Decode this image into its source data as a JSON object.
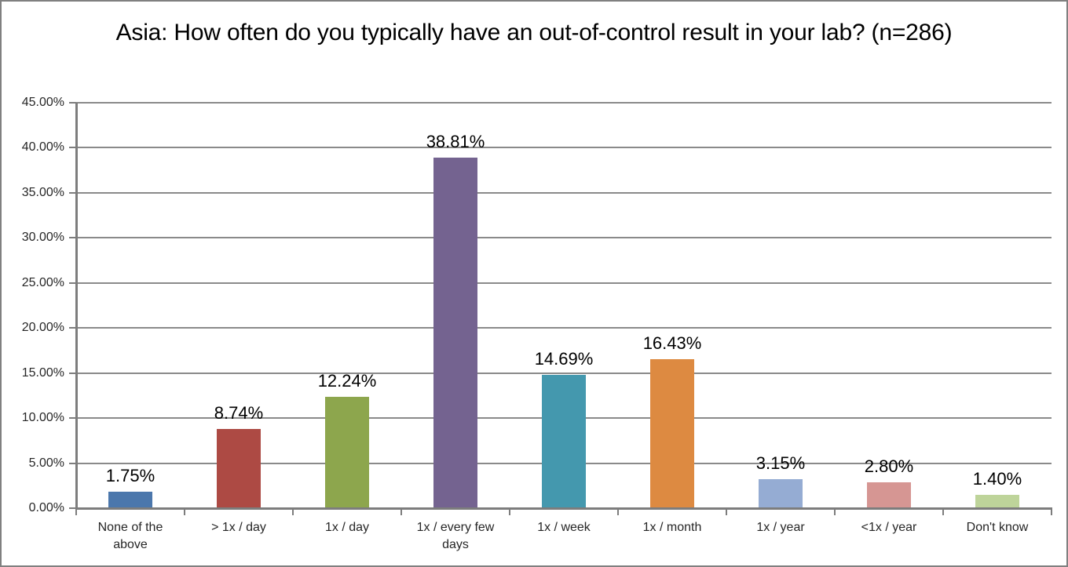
{
  "window": {
    "background_color": "#ffffff",
    "border_color": "#808080"
  },
  "chart_data": {
    "type": "bar",
    "title": "Asia: How often do you typically have an out-of-control result in your lab? (n=286)",
    "categories": [
      "None of the above",
      "> 1x / day",
      "1x / day",
      "1x / every few days",
      "1x / week",
      "1x / month",
      "1x / year",
      "<1x / year",
      "Don't know"
    ],
    "values": [
      1.75,
      8.74,
      12.24,
      38.81,
      14.69,
      16.43,
      3.15,
      2.8,
      1.4
    ],
    "data_labels": [
      "1.75%",
      "8.74%",
      "12.24%",
      "38.81%",
      "14.69%",
      "16.43%",
      "3.15%",
      "2.80%",
      "1.40%"
    ],
    "bar_colors": [
      "#4B77AC",
      "#AD4A44",
      "#8DA64D",
      "#746390",
      "#4498AE",
      "#DD8A41",
      "#95ACD3",
      "#D69693",
      "#BED49A"
    ],
    "xlabel": "",
    "ylabel": "",
    "ylim": [
      0,
      45
    ],
    "ytick_step": 5,
    "yticks": [
      {
        "value": 0,
        "label": "0.00%"
      },
      {
        "value": 5,
        "label": "5.00%"
      },
      {
        "value": 10,
        "label": "10.00%"
      },
      {
        "value": 15,
        "label": "15.00%"
      },
      {
        "value": 20,
        "label": "20.00%"
      },
      {
        "value": 25,
        "label": "25.00%"
      },
      {
        "value": 30,
        "label": "30.00%"
      },
      {
        "value": 35,
        "label": "35.00%"
      },
      {
        "value": 40,
        "label": "40.00%"
      },
      {
        "value": 45,
        "label": "45.00%"
      }
    ],
    "grid": true,
    "legend_position": "none",
    "gridline_color": "#8A8A8A",
    "axis_color": "#7D7D7D",
    "tick_label_color": "#262626",
    "data_label_color": "#000000",
    "title_color": "#000000"
  }
}
